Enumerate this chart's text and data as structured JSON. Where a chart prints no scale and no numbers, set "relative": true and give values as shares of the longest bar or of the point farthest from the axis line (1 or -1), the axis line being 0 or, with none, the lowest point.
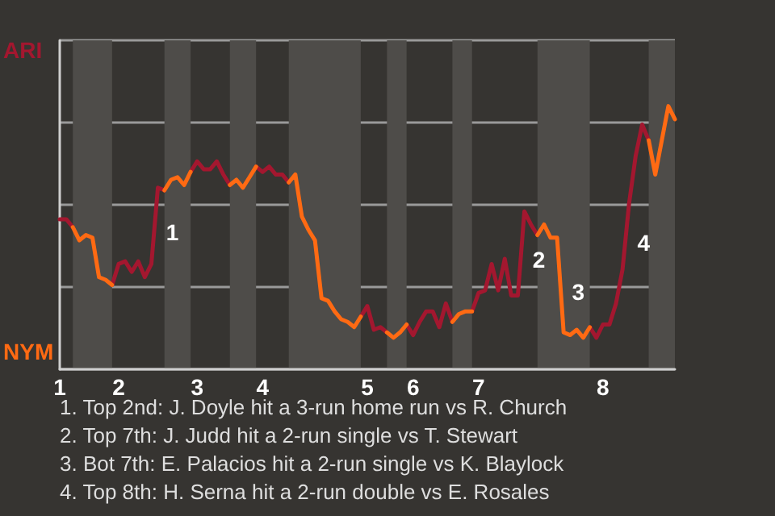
{
  "chart_data": {
    "type": "line",
    "relative": true,
    "categories": [
      "1",
      null,
      null,
      null,
      null,
      null,
      null,
      null,
      null,
      "2",
      null,
      null,
      null,
      null,
      null,
      null,
      null,
      null,
      null,
      null,
      null,
      "3",
      null,
      null,
      null,
      null,
      null,
      null,
      null,
      null,
      null,
      "4",
      null,
      null,
      null,
      null,
      null,
      null,
      null,
      null,
      null,
      null,
      null,
      null,
      null,
      null,
      null,
      "5",
      null,
      null,
      null,
      null,
      null,
      null,
      "6",
      null,
      null,
      null,
      null,
      null,
      null,
      null,
      null,
      null,
      "7",
      null,
      null,
      null,
      null,
      null,
      null,
      null,
      null,
      null,
      null,
      null,
      null,
      null,
      null,
      null,
      null,
      null,
      null,
      "8",
      null,
      null,
      null,
      null,
      null,
      null,
      null,
      null,
      null,
      null,
      null
    ],
    "series": [
      {
        "color": "#a3172f",
        "values": [
          0.57,
          0.57,
          0.54,
          null,
          null,
          null,
          null,
          null,
          0.32,
          0.4,
          0.41,
          0.37,
          0.41,
          0.35,
          0.4,
          0.69,
          0.68,
          null,
          null,
          null,
          0.75,
          0.79,
          0.76,
          0.76,
          0.79,
          0.74,
          0.7,
          null,
          null,
          null,
          0.77,
          0.75,
          0.77,
          0.74,
          0.74,
          0.71,
          null,
          null,
          null,
          null,
          null,
          null,
          null,
          null,
          null,
          null,
          0.2,
          0.24,
          0.15,
          0.16,
          0.14,
          null,
          null,
          0.17,
          0.13,
          0.18,
          0.22,
          0.22,
          0.16,
          0.25,
          0.18,
          null,
          null,
          0.22,
          0.29,
          0.3,
          0.4,
          0.3,
          0.42,
          0.28,
          0.28,
          0.6,
          0.55,
          0.51,
          null,
          null,
          null,
          null,
          null,
          null,
          null,
          0.16,
          0.12,
          0.17,
          0.17,
          0.25,
          0.38,
          0.63,
          0.81,
          0.93,
          0.87,
          null,
          null,
          null,
          null
        ]
      },
      {
        "color": "#ff6a13",
        "values": [
          null,
          null,
          0.54,
          0.49,
          0.51,
          0.5,
          0.35,
          0.34,
          0.32,
          null,
          null,
          null,
          null,
          null,
          null,
          null,
          0.68,
          0.72,
          0.73,
          0.7,
          0.75,
          null,
          null,
          null,
          null,
          null,
          0.7,
          0.72,
          0.69,
          0.73,
          0.77,
          null,
          null,
          null,
          null,
          0.71,
          0.74,
          0.58,
          0.53,
          0.49,
          0.27,
          0.26,
          0.22,
          0.19,
          0.18,
          0.16,
          0.2,
          null,
          null,
          null,
          0.14,
          0.12,
          0.14,
          0.17,
          null,
          null,
          null,
          null,
          null,
          null,
          0.18,
          0.21,
          0.22,
          0.22,
          null,
          null,
          null,
          null,
          null,
          null,
          null,
          null,
          null,
          0.51,
          0.55,
          0.5,
          0.5,
          0.14,
          0.13,
          0.15,
          0.12,
          0.16,
          null,
          null,
          null,
          null,
          null,
          null,
          null,
          null,
          0.87,
          0.74,
          0.87,
          1,
          0.95
        ]
      }
    ],
    "grid": "y",
    "marker": "none",
    "line_style": "solid",
    "annotations": [
      "ARI",
      "NYM",
      "1",
      "2",
      "3",
      "4",
      "1. Top 2nd: J. Doyle hit a 3-run home run vs R. Church",
      "2. Top 7th: J. Judd hit a 2-run single vs T. Stewart",
      "3. Bot 7th: E. Palacios hit a 2-run single vs K. Blaylock",
      "4. Top 8th: H. Serna hit a 2-run double vs E. Rosales"
    ]
  }
}
